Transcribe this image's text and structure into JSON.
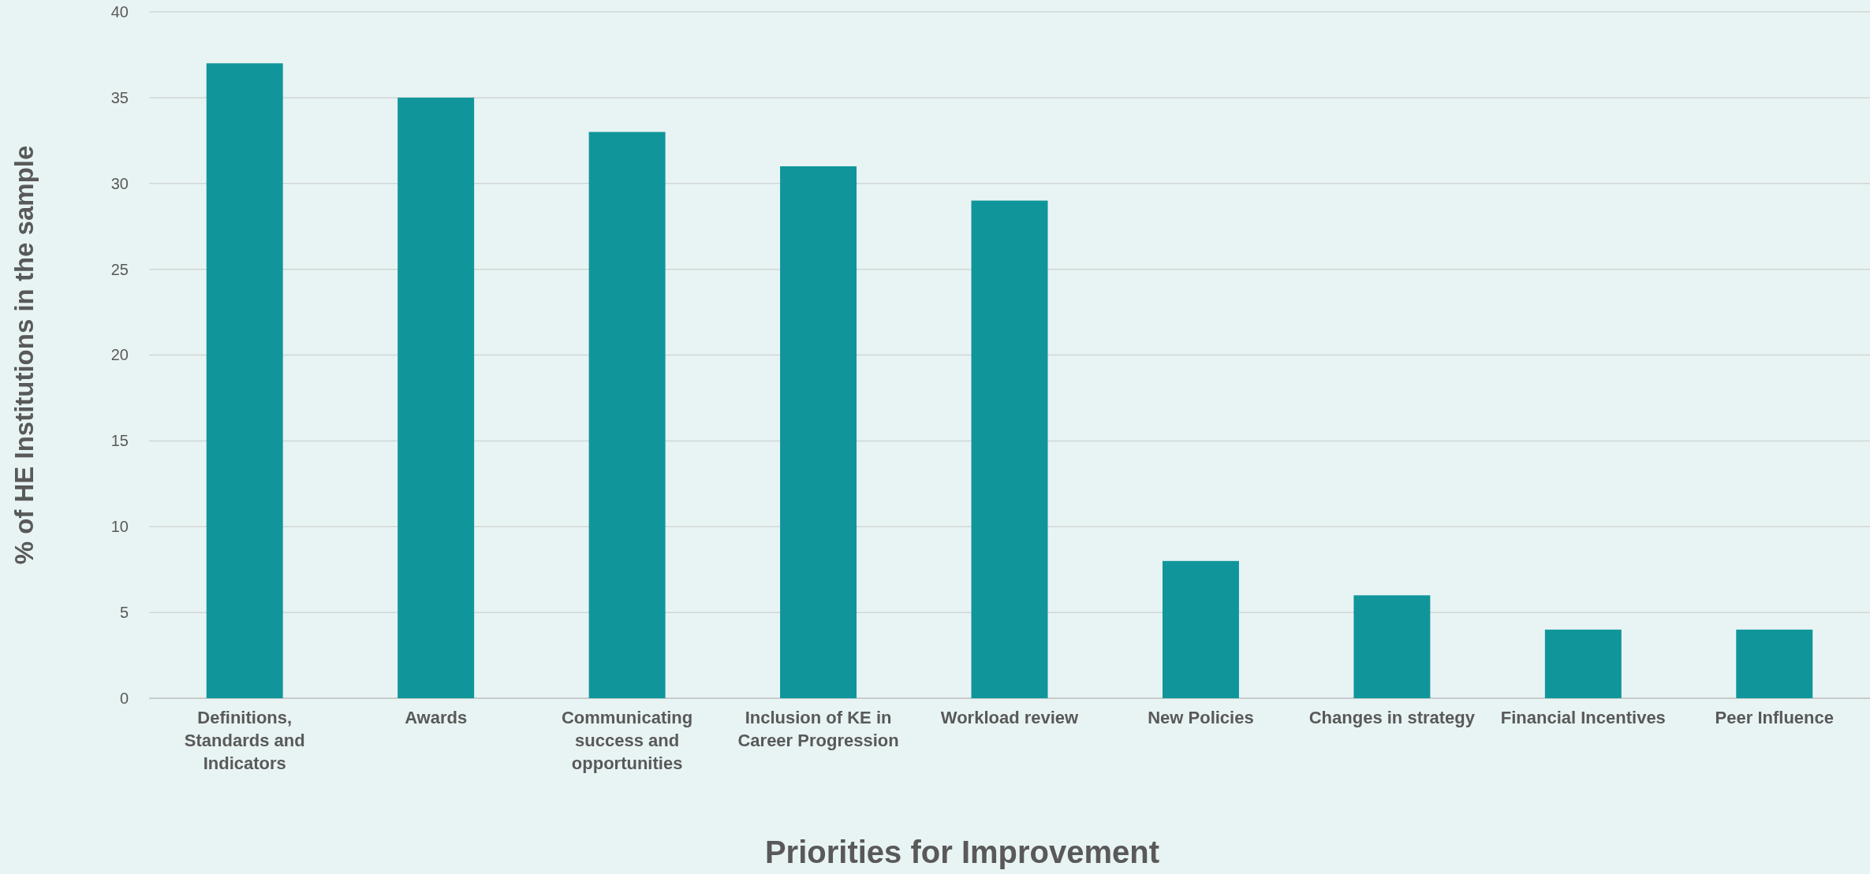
{
  "chart_data": {
    "type": "bar",
    "xlabel": "Priorities for Improvement",
    "ylabel": "% of HE Institutions in the sample",
    "categories": [
      "Definitions, Standards and Indicators",
      "Awards",
      "Communicating success and opportunities",
      "Inclusion of KE in Career Progression",
      "Workload review",
      "New Policies",
      "Changes in strategy",
      "Financial Incentives",
      "Peer Influence"
    ],
    "values": [
      37,
      35,
      33,
      31,
      29,
      8,
      6,
      4,
      4
    ],
    "color": "#10969a",
    "ylim": [
      0,
      40
    ],
    "yticks": [
      0,
      5,
      10,
      15,
      20,
      25,
      30,
      35,
      40
    ],
    "grid": "y"
  }
}
